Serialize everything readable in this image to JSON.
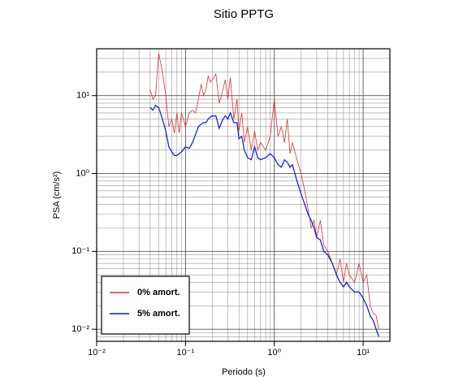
{
  "chart_data": {
    "type": "line",
    "title": "Sitio PPTG",
    "xlabel": "Periodo (s)",
    "ylabel": "PSA (cm/s²)",
    "log_x": true,
    "log_y": true,
    "grid": true,
    "minor_grid": true,
    "legend": "lower left",
    "xlim": [
      0.01,
      20
    ],
    "ylim": [
      0.007,
      40
    ],
    "xticks": [
      {
        "value": 0.01,
        "label": "10⁻²"
      },
      {
        "value": 0.1,
        "label": "10⁻¹"
      },
      {
        "value": 1,
        "label": "10⁰"
      },
      {
        "value": 10,
        "label": "10¹"
      }
    ],
    "yticks": [
      {
        "value": 0.01,
        "label": "10⁻²"
      },
      {
        "value": 0.1,
        "label": "10⁻¹"
      },
      {
        "value": 1,
        "label": "10⁰"
      },
      {
        "value": 10,
        "label": "10¹"
      }
    ],
    "x": [
      0.04,
      0.043,
      0.046,
      0.05,
      0.055,
      0.06,
      0.065,
      0.07,
      0.075,
      0.08,
      0.085,
      0.09,
      0.1,
      0.11,
      0.12,
      0.13,
      0.14,
      0.15,
      0.16,
      0.17,
      0.18,
      0.19,
      0.2,
      0.22,
      0.24,
      0.26,
      0.28,
      0.3,
      0.32,
      0.35,
      0.38,
      0.4,
      0.43,
      0.46,
      0.5,
      0.55,
      0.6,
      0.65,
      0.7,
      0.8,
      0.9,
      1.0,
      1.1,
      1.2,
      1.3,
      1.4,
      1.5,
      1.6,
      1.8,
      2.0,
      2.2,
      2.4,
      2.6,
      2.8,
      3.0,
      3.3,
      3.6,
      4.0,
      4.5,
      5.0,
      5.5,
      6.0,
      6.5,
      7.0,
      8.0,
      9.0,
      10,
      11,
      12,
      13,
      14,
      15
    ],
    "series": [
      {
        "name": "0% amort.",
        "color": "#e03030",
        "values": [
          12,
          9,
          10,
          35,
          20,
          10,
          4,
          5,
          3.3,
          6,
          3.3,
          6,
          4,
          6,
          6.5,
          6,
          9,
          14,
          10,
          12,
          18,
          15,
          16,
          19,
          8,
          11,
          16,
          9,
          17,
          5,
          9,
          3.5,
          6,
          2.5,
          4,
          2,
          3.5,
          2,
          2.5,
          2,
          3,
          9,
          3,
          4,
          2.5,
          5,
          1.8,
          2.5,
          1.5,
          1.0,
          0.6,
          0.35,
          0.2,
          0.25,
          0.15,
          0.25,
          0.12,
          0.1,
          0.07,
          0.05,
          0.08,
          0.04,
          0.07,
          0.05,
          0.04,
          0.07,
          0.04,
          0.05,
          0.02,
          0.016,
          0.015,
          0.01
        ]
      },
      {
        "name": "5% amort.",
        "color": "#0018e0",
        "values": [
          7,
          6.5,
          7.5,
          7,
          5,
          3.5,
          2.2,
          1.9,
          1.7,
          1.7,
          1.8,
          1.9,
          2.2,
          2.1,
          2.5,
          3.2,
          4,
          4.3,
          4.5,
          4.5,
          5,
          5.3,
          5.5,
          5.5,
          3.8,
          4.8,
          5.5,
          5,
          6,
          4.5,
          4.5,
          2.8,
          3,
          2,
          1.6,
          1.5,
          2.2,
          1.6,
          1.5,
          1.6,
          1.8,
          1.6,
          1.3,
          1.2,
          1.5,
          1.4,
          1.2,
          1.3,
          0.8,
          0.55,
          0.4,
          0.3,
          0.25,
          0.2,
          0.15,
          0.14,
          0.1,
          0.09,
          0.07,
          0.05,
          0.04,
          0.035,
          0.04,
          0.035,
          0.03,
          0.03,
          0.025,
          0.02,
          0.015,
          0.013,
          0.01,
          0.008
        ]
      }
    ]
  }
}
